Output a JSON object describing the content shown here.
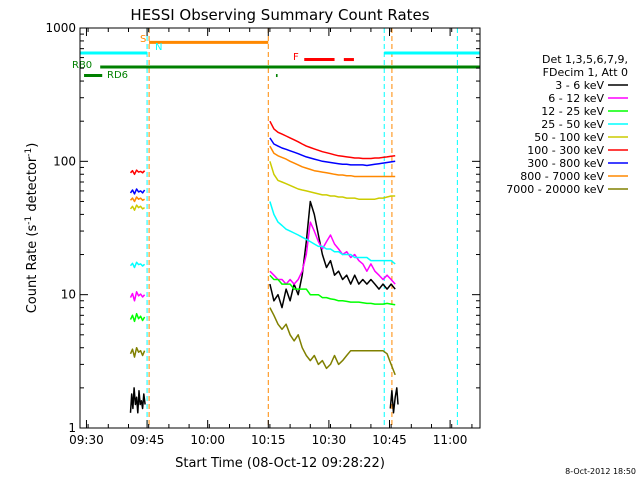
{
  "chart_data": {
    "type": "line",
    "title": "HESSI Observing Summary Count Rates",
    "xlabel": "Start Time (08-Oct-12 09:28:22)",
    "ylabel_main": "Count Rate (s",
    "ylabel_sup1": "-1",
    "ylabel_mid": " detector",
    "ylabel_sup2": "-1",
    "ylabel_end": ")",
    "x_unit": "minutes after 09:28:22",
    "xlim": [
      0,
      99
    ],
    "ylim": [
      1,
      1000
    ],
    "yscale": "log",
    "x_ticks": [
      {
        "label": "09:30",
        "value": 1.6
      },
      {
        "label": "09:45",
        "value": 16.6
      },
      {
        "label": "10:00",
        "value": 31.6
      },
      {
        "label": "10:15",
        "value": 46.6
      },
      {
        "label": "10:30",
        "value": 61.6
      },
      {
        "label": "10:45",
        "value": 76.6
      },
      {
        "label": "11:00",
        "value": 91.6
      }
    ],
    "y_ticks": [
      {
        "label": "1",
        "value": 1
      },
      {
        "label": "10",
        "value": 10
      },
      {
        "label": "100",
        "value": 100
      },
      {
        "label": "1000",
        "value": 1000
      }
    ],
    "legend": {
      "position": "right",
      "header": [
        "Det 1,3,5,6,7,9,",
        "FDecim 1, Att 0"
      ]
    },
    "series": [
      {
        "name": "3 - 6 keV",
        "color": "#000000",
        "segments": [
          {
            "x": [
              12.5,
              12.8,
              13.1,
              13.4,
              13.7,
              14.0,
              14.3,
              14.6,
              14.9,
              15.2,
              15.5,
              15.8,
              16.1
            ],
            "y": [
              1.3,
              1.8,
              1.4,
              2.0,
              1.5,
              1.7,
              1.3,
              1.9,
              1.5,
              1.6,
              1.4,
              1.8,
              1.5
            ]
          },
          {
            "x": [
              47,
              48,
              49,
              50,
              51,
              52,
              53,
              54,
              55,
              56,
              57,
              58,
              59,
              60,
              61,
              62,
              63,
              64,
              65,
              66,
              67,
              68,
              69,
              70,
              71,
              72,
              73,
              74,
              75,
              76,
              77,
              78
            ],
            "y": [
              12,
              9,
              10,
              8,
              11,
              9,
              12,
              10,
              14,
              25,
              50,
              40,
              28,
              20,
              16,
              18,
              14,
              15,
              13,
              14,
              12,
              14,
              12,
              13,
              12,
              13,
              12,
              11,
              12,
              11,
              12,
              11
            ]
          },
          {
            "x": [
              76.8,
              77.2,
              77.6,
              78.0,
              78.4,
              78.7
            ],
            "y": [
              1.4,
              1.9,
              1.3,
              1.7,
              2.0,
              1.5
            ]
          }
        ]
      },
      {
        "name": "6 - 12 keV",
        "color": "#ff00ff",
        "segments": [
          {
            "x": [
              12.5,
              13.0,
              13.5,
              14.0,
              14.5,
              15.0,
              15.5,
              16.0
            ],
            "y": [
              9.5,
              10.2,
              9.0,
              10.5,
              9.8,
              10.1,
              9.6,
              10.0
            ]
          },
          {
            "x": [
              47,
              48,
              49,
              50,
              51,
              52,
              53,
              54,
              55,
              56,
              57,
              58,
              59,
              60,
              61,
              62,
              63,
              64,
              65,
              66,
              67,
              68,
              69,
              70,
              71,
              72,
              73,
              74,
              75,
              76,
              77,
              78
            ],
            "y": [
              15,
              14,
              13,
              13,
              12,
              13,
              12,
              13,
              15,
              20,
              35,
              30,
              25,
              22,
              25,
              28,
              24,
              22,
              20,
              21,
              19,
              20,
              18,
              17,
              15,
              17,
              15,
              14,
              13,
              14,
              13,
              12
            ]
          }
        ]
      },
      {
        "name": "12 - 25 keV",
        "color": "#00ff00",
        "segments": [
          {
            "x": [
              12.5,
              13.0,
              13.5,
              14.0,
              14.5,
              15.0,
              15.5,
              16.0
            ],
            "y": [
              6.5,
              7.0,
              6.3,
              7.2,
              6.6,
              6.9,
              6.4,
              6.8
            ]
          },
          {
            "x": [
              47,
              48,
              49,
              50,
              51,
              52,
              53,
              54,
              55,
              56,
              57,
              58,
              59,
              60,
              61,
              62,
              63,
              64,
              65,
              66,
              67,
              68,
              69,
              70,
              71,
              72,
              73,
              74,
              75,
              76,
              77,
              78
            ],
            "y": [
              14,
              13,
              13,
              12,
              12,
              12,
              11,
              11,
              11,
              11,
              10,
              10,
              10,
              9.5,
              9.5,
              9.3,
              9.2,
              9.0,
              9.0,
              8.9,
              8.8,
              8.8,
              8.8,
              8.7,
              8.6,
              8.6,
              8.5,
              8.5,
              8.5,
              8.6,
              8.5,
              8.4
            ]
          }
        ]
      },
      {
        "name": "25 - 50 keV",
        "color": "#00ffff",
        "segments": [
          {
            "x": [
              12.5,
              13.0,
              13.5,
              14.0,
              14.5,
              15.0,
              15.5,
              16.0
            ],
            "y": [
              16.5,
              17.2,
              16.0,
              17.5,
              16.8,
              17.0,
              16.4,
              16.9
            ]
          },
          {
            "x": [
              47,
              48,
              49,
              50,
              51,
              52,
              53,
              54,
              55,
              56,
              57,
              58,
              59,
              60,
              61,
              62,
              63,
              64,
              65,
              66,
              67,
              68,
              69,
              70,
              71,
              72,
              73,
              74,
              75,
              76,
              77,
              78
            ],
            "y": [
              50,
              40,
              35,
              33,
              31,
              30,
              29,
              28,
              27,
              26,
              25,
              24,
              23,
              23,
              22,
              22,
              21,
              21,
              20,
              20,
              20,
              19,
              19,
              19,
              19,
              18,
              18,
              18,
              18,
              18,
              18,
              17
            ]
          }
        ]
      },
      {
        "name": "50 - 100 keV",
        "color": "#cccc00",
        "segments": [
          {
            "x": [
              12.5,
              13.0,
              13.5,
              14.0,
              14.5,
              15.0,
              15.5,
              16.0
            ],
            "y": [
              44,
              46,
              43,
              47,
              45,
              46,
              44,
              45
            ]
          },
          {
            "x": [
              47,
              48,
              49,
              50,
              51,
              52,
              53,
              54,
              55,
              56,
              57,
              58,
              59,
              60,
              61,
              62,
              63,
              64,
              65,
              66,
              67,
              68,
              69,
              70,
              71,
              72,
              73,
              74,
              75,
              76,
              77,
              78
            ],
            "y": [
              100,
              80,
              72,
              70,
              68,
              66,
              64,
              62,
              61,
              60,
              59,
              58,
              57,
              56,
              56,
              55,
              55,
              54,
              54,
              53,
              53,
              53,
              52,
              52,
              52,
              52,
              52,
              53,
              53,
              54,
              55,
              55
            ]
          }
        ]
      },
      {
        "name": "100 - 300 keV",
        "color": "#ff0000",
        "segments": [
          {
            "x": [
              12.5,
              13.0,
              13.5,
              14.0,
              14.5,
              15.0,
              15.5,
              16.0
            ],
            "y": [
              82,
              85,
              80,
              86,
              83,
              84,
              82,
              85
            ]
          },
          {
            "x": [
              47,
              48,
              49,
              50,
              51,
              52,
              53,
              54,
              55,
              56,
              57,
              58,
              59,
              60,
              61,
              62,
              63,
              64,
              65,
              66,
              67,
              68,
              69,
              70,
              71,
              72,
              73,
              74,
              75,
              76,
              77,
              78
            ],
            "y": [
              200,
              175,
              165,
              160,
              155,
              150,
              145,
              140,
              135,
              130,
              127,
              124,
              121,
              118,
              116,
              114,
              112,
              110,
              109,
              108,
              107,
              106,
              106,
              105,
              105,
              105,
              106,
              106,
              107,
              108,
              109,
              110
            ]
          }
        ]
      },
      {
        "name": "300 - 800 keV",
        "color": "#0000ff",
        "segments": [
          {
            "x": [
              12.5,
              13.0,
              13.5,
              14.0,
              14.5,
              15.0,
              15.5,
              16.0
            ],
            "y": [
              58,
              61,
              57,
              62,
              59,
              60,
              58,
              61
            ]
          },
          {
            "x": [
              47,
              48,
              49,
              50,
              51,
              52,
              53,
              54,
              55,
              56,
              57,
              58,
              59,
              60,
              61,
              62,
              63,
              64,
              65,
              66,
              67,
              68,
              69,
              70,
              71,
              72,
              73,
              74,
              75,
              76,
              77,
              78
            ],
            "y": [
              150,
              135,
              130,
              126,
              123,
              120,
              117,
              114,
              111,
              108,
              106,
              104,
              102,
              100,
              99,
              98,
              97,
              96,
              95,
              95,
              94,
              94,
              94,
              94,
              93,
              94,
              95,
              96,
              97,
              98,
              99,
              100
            ]
          }
        ]
      },
      {
        "name": "800 - 7000 keV",
        "color": "#ff8800",
        "segments": [
          {
            "x": [
              12.5,
              13.0,
              13.5,
              14.0,
              14.5,
              15.0,
              15.5,
              16.0
            ],
            "y": [
              51,
              53,
              50,
              54,
              52,
              53,
              51,
              52
            ]
          },
          {
            "x": [
              47,
              48,
              49,
              50,
              51,
              52,
              53,
              54,
              55,
              56,
              57,
              58,
              59,
              60,
              61,
              62,
              63,
              64,
              65,
              66,
              67,
              68,
              69,
              70,
              71,
              72,
              73,
              74,
              75,
              76,
              77,
              78
            ],
            "y": [
              130,
              115,
              110,
              107,
              104,
              100,
              97,
              94,
              91,
              89,
              87,
              85,
              84,
              83,
              82,
              81,
              80,
              79,
              79,
              78,
              78,
              77,
              77,
              77,
              77,
              77,
              77,
              77,
              77,
              77,
              77,
              77
            ]
          }
        ]
      },
      {
        "name": "7000 - 20000 keV",
        "color": "#808000",
        "segments": [
          {
            "x": [
              12.5,
              13.0,
              13.5,
              14.0,
              14.5,
              15.0,
              15.5,
              16.0
            ],
            "y": [
              3.6,
              3.9,
              3.4,
              4.0,
              3.7,
              3.8,
              3.5,
              3.8
            ]
          },
          {
            "x": [
              47,
              48,
              49,
              50,
              51,
              52,
              53,
              54,
              55,
              56,
              57,
              58,
              59,
              60,
              61,
              62,
              63,
              64,
              65,
              66,
              67,
              68,
              69,
              70,
              71,
              72,
              73,
              74,
              75,
              76,
              77,
              78
            ],
            "y": [
              8,
              7,
              6,
              5.5,
              6,
              5,
              4.5,
              5,
              4,
              3.5,
              3.2,
              3.5,
              3.0,
              3.2,
              2.8,
              3.0,
              3.5,
              3.0,
              3.2,
              3.5,
              3.8,
              3.8,
              3.8,
              3.8,
              3.8,
              3.8,
              3.8,
              3.8,
              3.8,
              3.6,
              3.0,
              2.5
            ]
          }
        ]
      }
    ],
    "annotations": {
      "flag_bars": [
        {
          "label": "",
          "color": "#00ffff",
          "segments": [
            [
              0,
              16.6
            ],
            [
              75.3,
              99
            ]
          ],
          "y": 650
        },
        {
          "label": "S",
          "color": "#ff8800",
          "segments": [
            [
              17.1,
              46.6
            ]
          ],
          "y": 780
        },
        {
          "label": "N",
          "color": "#00ffff",
          "segments": [],
          "y": 650
        },
        {
          "label": "F",
          "color": "#ff0000",
          "segments": [
            [
              55.5,
              63
            ],
            [
              65.3,
              67.8
            ]
          ],
          "y": 580
        },
        {
          "label": "RB0",
          "color": "#008000",
          "segments": [
            [
              5,
              99
            ]
          ],
          "y": 510
        },
        {
          "label": "RD6",
          "color": "#008000",
          "segments": [
            [
              1,
              5.5
            ],
            [
              48.5,
              48.9
            ]
          ],
          "y": 440
        }
      ],
      "vlines": [
        {
          "x": 16.6,
          "color": "#00ffff"
        },
        {
          "x": 17.1,
          "color": "#ff8800"
        },
        {
          "x": 46.6,
          "color": "#ff8800"
        },
        {
          "x": 75.3,
          "color": "#00ffff"
        },
        {
          "x": 77.2,
          "color": "#ff8800"
        },
        {
          "x": 93.4,
          "color": "#00ffff"
        }
      ]
    },
    "timestamp": "8-Oct-2012 18:50"
  }
}
